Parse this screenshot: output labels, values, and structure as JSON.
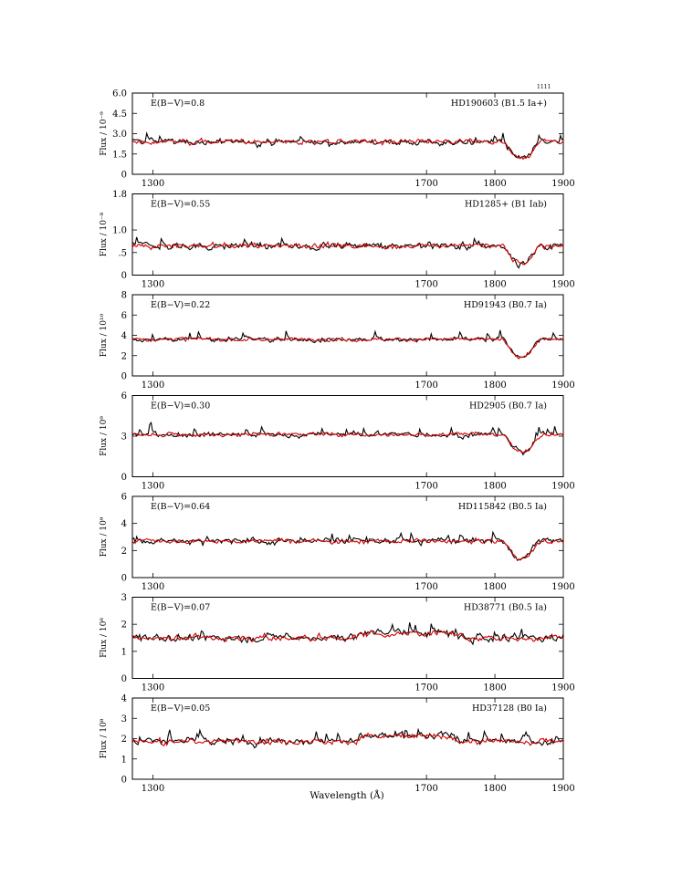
{
  "chart_data": {
    "type": "line",
    "xlabel": "Wavelength (Å)",
    "top_mark": "1111",
    "xlim": [
      1270,
      1900
    ],
    "x_ticks": [
      1300,
      1700,
      1800,
      1900
    ],
    "x_tick_labels": [
      "1300",
      "1700",
      "1800",
      "1900"
    ],
    "series_colors": [
      "#000000",
      "#d10000"
    ],
    "panels": [
      {
        "label": "E(B−V)=0.8",
        "star": "HD190603 (B1.5 Ia+)",
        "ylabel": "Flux / 10⁻⁹",
        "ylim": [
          0,
          6.0
        ],
        "y_ticks": [
          0,
          1.5,
          3.0,
          4.5,
          6.0
        ],
        "y_tick_labels": [
          "0",
          "1.5",
          "3.0",
          "4.5",
          "6.0"
        ]
      },
      {
        "label": "E(B−V)=0.55",
        "star": "HD1285+ (B1 Iab)",
        "ylabel": "Flux / 10⁻⁸",
        "ylim": [
          0,
          1.8
        ],
        "y_ticks": [
          0,
          0.5,
          1.0,
          1.8
        ],
        "y_tick_labels": [
          "0",
          ".5",
          "1.0",
          "1.8"
        ]
      },
      {
        "label": "E(B−V)=0.22",
        "star": "HD91943 (B0.7 Ia)",
        "ylabel": "Flux / 10¹⁰",
        "ylim": [
          0,
          8
        ],
        "y_ticks": [
          0,
          2,
          4,
          6,
          8
        ],
        "y_tick_labels": [
          "0",
          "2",
          "4",
          "6",
          "8"
        ]
      },
      {
        "label": "E(B−V)=0.30",
        "star": "HD2905 (B0.7 Ia)",
        "ylabel": "Flux / 10⁹",
        "ylim": [
          0,
          6
        ],
        "y_ticks": [
          0,
          3,
          6
        ],
        "y_tick_labels": [
          "0",
          "3",
          "6"
        ]
      },
      {
        "label": "E(B−V)=0.64",
        "star": "HD115842 (B0.5 Ia)",
        "ylabel": "Flux / 10⁹",
        "ylim": [
          0,
          6
        ],
        "y_ticks": [
          0,
          2,
          4,
          6
        ],
        "y_tick_labels": [
          "0",
          "2",
          "4",
          "6"
        ]
      },
      {
        "label": "E(B−V)=0.07",
        "star": "HD38771 (B0.5 Ia)",
        "ylabel": "Flux / 10⁸",
        "ylim": [
          0,
          3
        ],
        "y_ticks": [
          0,
          1,
          2,
          3
        ],
        "y_tick_labels": [
          "0",
          "1",
          "2",
          "3"
        ]
      },
      {
        "label": "E(B−V)=0.05",
        "star": "HD37128 (B0 Ia)",
        "ylabel": "Flux / 10⁸",
        "ylim": [
          0,
          4
        ],
        "y_ticks": [
          0,
          1,
          2,
          3,
          4
        ],
        "y_tick_labels": [
          "0",
          "1",
          "2",
          "3",
          "4"
        ]
      }
    ]
  }
}
